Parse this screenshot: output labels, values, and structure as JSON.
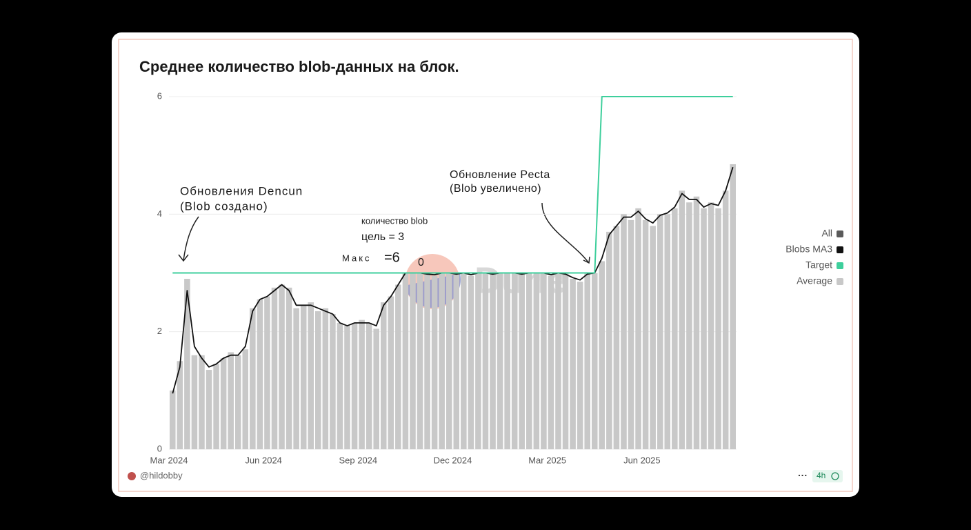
{
  "chart_data": {
    "type": "bar",
    "title": "Среднее количество blob-данных на блок.",
    "categories": [
      "Mar 2024",
      null,
      null,
      null,
      null,
      null,
      null,
      null,
      null,
      null,
      null,
      null,
      null,
      "Jun 2024",
      null,
      null,
      null,
      null,
      null,
      null,
      null,
      null,
      null,
      null,
      null,
      null,
      "Sep 2024",
      null,
      null,
      null,
      null,
      null,
      null,
      null,
      null,
      null,
      null,
      null,
      null,
      "Dec 2024",
      null,
      null,
      null,
      null,
      null,
      null,
      null,
      null,
      null,
      null,
      null,
      null,
      "Mar 2025",
      null,
      null,
      null,
      null,
      null,
      null,
      null,
      null,
      null,
      null,
      null,
      null,
      "Jun 2025",
      null,
      null,
      null,
      null,
      null,
      null,
      null,
      null,
      null,
      null,
      null,
      null
    ],
    "series": [
      {
        "name": "All",
        "color": "#5a5a5a",
        "values": [
          null,
          null,
          null,
          null,
          null,
          null,
          null,
          null,
          null,
          null,
          null,
          null,
          null,
          null,
          null,
          null,
          null,
          null,
          null,
          null,
          null,
          null,
          null,
          null,
          null,
          null,
          null,
          null,
          null,
          null,
          null,
          null,
          null,
          null,
          null,
          null,
          null,
          null,
          null,
          null,
          null,
          null,
          null,
          null,
          null,
          null,
          null,
          null,
          null,
          null,
          null,
          null,
          null,
          null,
          null,
          null,
          null,
          null,
          null,
          null,
          null,
          null,
          null,
          null,
          null,
          null,
          null,
          null,
          null,
          null,
          null,
          null,
          null,
          null,
          null,
          null,
          null,
          null
        ]
      },
      {
        "name": "Blobs MA3",
        "color": "#111111",
        "values": [
          0.95,
          1.4,
          2.7,
          1.75,
          1.55,
          1.4,
          1.45,
          1.55,
          1.6,
          1.6,
          1.75,
          2.35,
          2.55,
          2.6,
          2.7,
          2.8,
          2.7,
          2.45,
          2.45,
          2.45,
          2.4,
          2.35,
          2.3,
          2.15,
          2.1,
          2.15,
          2.15,
          2.15,
          2.1,
          2.45,
          2.6,
          2.8,
          3.0,
          3.0,
          3.0,
          2.98,
          2.97,
          3.0,
          3.0,
          2.98,
          3.0,
          2.97,
          3.0,
          3.0,
          2.98,
          3.0,
          3.0,
          3.0,
          2.98,
          3.0,
          3.0,
          3.0,
          2.97,
          3.0,
          2.98,
          2.92,
          2.88,
          2.98,
          3.0,
          3.25,
          3.65,
          3.8,
          3.95,
          3.95,
          4.05,
          3.92,
          3.85,
          3.98,
          4.02,
          4.12,
          4.35,
          4.25,
          4.25,
          4.12,
          4.18,
          4.15,
          4.4,
          4.8
        ]
      },
      {
        "name": "Target",
        "color": "#3ecf9c",
        "values": [
          3,
          3,
          3,
          3,
          3,
          3,
          3,
          3,
          3,
          3,
          3,
          3,
          3,
          3,
          3,
          3,
          3,
          3,
          3,
          3,
          3,
          3,
          3,
          3,
          3,
          3,
          3,
          3,
          3,
          3,
          3,
          3,
          3,
          3,
          3,
          3,
          3,
          3,
          3,
          3,
          3,
          3,
          3,
          3,
          3,
          3,
          3,
          3,
          3,
          3,
          3,
          3,
          3,
          3,
          3,
          3,
          3,
          3,
          3,
          6,
          6,
          6,
          6,
          6,
          6,
          6,
          6,
          6,
          6,
          6,
          6,
          6,
          6,
          6,
          6,
          6,
          6,
          6
        ]
      },
      {
        "name": "Average",
        "color": "#c8c8c8",
        "values": [
          1.0,
          1.5,
          2.9,
          1.6,
          1.6,
          1.35,
          1.45,
          1.55,
          1.65,
          1.6,
          1.7,
          2.4,
          2.55,
          2.6,
          2.75,
          2.8,
          2.75,
          2.4,
          2.45,
          2.5,
          2.35,
          2.4,
          2.3,
          2.15,
          2.1,
          2.15,
          2.2,
          2.15,
          2.05,
          2.5,
          2.6,
          2.8,
          3.0,
          3.0,
          3.0,
          3.0,
          2.95,
          3.0,
          3.0,
          3.0,
          3.0,
          2.95,
          3.0,
          3.0,
          3.0,
          3.0,
          3.0,
          3.0,
          3.0,
          3.0,
          3.0,
          3.0,
          2.95,
          3.0,
          3.0,
          2.9,
          2.85,
          3.0,
          3.0,
          3.2,
          3.7,
          3.8,
          4.0,
          3.9,
          4.1,
          3.9,
          3.8,
          4.0,
          4.0,
          4.1,
          4.4,
          4.2,
          4.3,
          4.1,
          4.2,
          4.1,
          4.4,
          4.85
        ]
      }
    ],
    "ylim": [
      0,
      6
    ],
    "yticks": [
      0,
      2,
      4,
      6
    ],
    "grid": true,
    "legend": "right",
    "annotations": [
      "Обновления Dencun",
      "(Blob создано)",
      "Обновление Pecta",
      "(Blob увеличено)",
      "количество blob",
      "цель = 3",
      "Макс",
      "=6",
      "0"
    ],
    "watermark": "Dune",
    "author": "@hildobby",
    "refresh": "4h",
    "menu": "···"
  }
}
